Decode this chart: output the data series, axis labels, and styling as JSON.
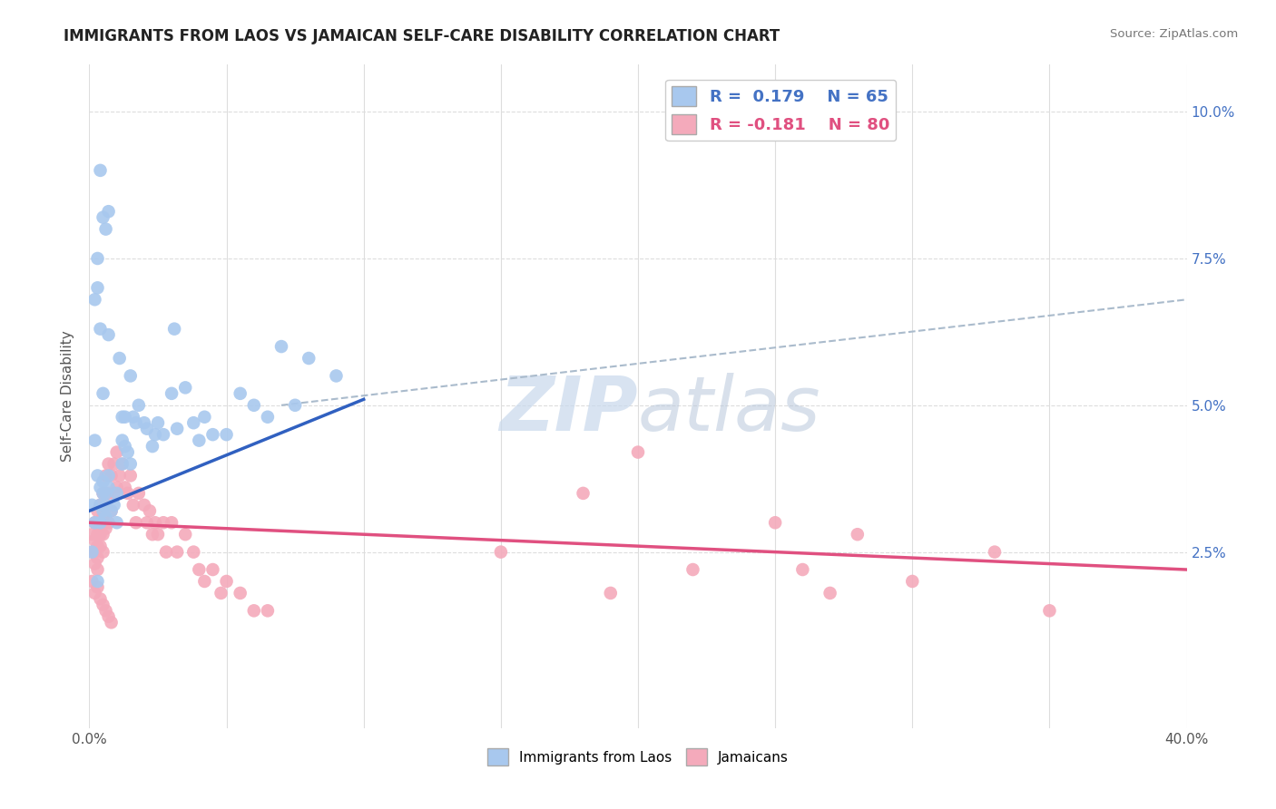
{
  "title": "IMMIGRANTS FROM LAOS VS JAMAICAN SELF-CARE DISABILITY CORRELATION CHART",
  "source": "Source: ZipAtlas.com",
  "ylabel": "Self-Care Disability",
  "xlim": [
    0.0,
    0.4
  ],
  "ylim": [
    -0.005,
    0.108
  ],
  "xticks": [
    0.0,
    0.05,
    0.1,
    0.15,
    0.2,
    0.25,
    0.3,
    0.35,
    0.4
  ],
  "ytick_positions": [
    0.025,
    0.05,
    0.075,
    0.1
  ],
  "ytick_labels": [
    "2.5%",
    "5.0%",
    "7.5%",
    "10.0%"
  ],
  "R_blue": 0.179,
  "N_blue": 65,
  "R_pink": -0.181,
  "N_pink": 80,
  "blue_color": "#A8C8EE",
  "pink_color": "#F4AABB",
  "blue_line_color": "#3060C0",
  "pink_line_color": "#E05080",
  "dash_line_color": "#AABBCC",
  "watermark_color": "#C8D8EC",
  "background_color": "#FFFFFF",
  "grid_color": "#DDDDDD",
  "blue_line_x": [
    0.0,
    0.1
  ],
  "blue_line_y": [
    0.032,
    0.051
  ],
  "pink_line_x": [
    0.0,
    0.4
  ],
  "pink_line_y": [
    0.03,
    0.022
  ],
  "dash_line_x": [
    0.07,
    0.4
  ],
  "dash_line_y": [
    0.05,
    0.068
  ],
  "blue_scatter": [
    [
      0.001,
      0.033
    ],
    [
      0.001,
      0.025
    ],
    [
      0.002,
      0.03
    ],
    [
      0.002,
      0.044
    ],
    [
      0.002,
      0.068
    ],
    [
      0.003,
      0.038
    ],
    [
      0.003,
      0.075
    ],
    [
      0.003,
      0.02
    ],
    [
      0.004,
      0.036
    ],
    [
      0.004,
      0.063
    ],
    [
      0.004,
      0.033
    ],
    [
      0.004,
      0.03
    ],
    [
      0.005,
      0.052
    ],
    [
      0.005,
      0.037
    ],
    [
      0.005,
      0.035
    ],
    [
      0.005,
      0.032
    ],
    [
      0.006,
      0.035
    ],
    [
      0.006,
      0.033
    ],
    [
      0.006,
      0.08
    ],
    [
      0.006,
      0.031
    ],
    [
      0.007,
      0.062
    ],
    [
      0.007,
      0.083
    ],
    [
      0.007,
      0.038
    ],
    [
      0.007,
      0.036
    ],
    [
      0.008,
      0.032
    ],
    [
      0.009,
      0.033
    ],
    [
      0.01,
      0.035
    ],
    [
      0.01,
      0.03
    ],
    [
      0.011,
      0.058
    ],
    [
      0.012,
      0.048
    ],
    [
      0.012,
      0.044
    ],
    [
      0.012,
      0.04
    ],
    [
      0.013,
      0.048
    ],
    [
      0.013,
      0.043
    ],
    [
      0.014,
      0.042
    ],
    [
      0.015,
      0.055
    ],
    [
      0.015,
      0.04
    ],
    [
      0.016,
      0.048
    ],
    [
      0.017,
      0.047
    ],
    [
      0.018,
      0.05
    ],
    [
      0.02,
      0.047
    ],
    [
      0.021,
      0.046
    ],
    [
      0.023,
      0.043
    ],
    [
      0.024,
      0.045
    ],
    [
      0.025,
      0.047
    ],
    [
      0.027,
      0.045
    ],
    [
      0.03,
      0.052
    ],
    [
      0.031,
      0.063
    ],
    [
      0.032,
      0.046
    ],
    [
      0.035,
      0.053
    ],
    [
      0.038,
      0.047
    ],
    [
      0.04,
      0.044
    ],
    [
      0.042,
      0.048
    ],
    [
      0.045,
      0.045
    ],
    [
      0.05,
      0.045
    ],
    [
      0.055,
      0.052
    ],
    [
      0.06,
      0.05
    ],
    [
      0.065,
      0.048
    ],
    [
      0.07,
      0.06
    ],
    [
      0.075,
      0.05
    ],
    [
      0.08,
      0.058
    ],
    [
      0.09,
      0.055
    ],
    [
      0.003,
      0.07
    ],
    [
      0.005,
      0.082
    ],
    [
      0.004,
      0.09
    ]
  ],
  "pink_scatter": [
    [
      0.001,
      0.025
    ],
    [
      0.001,
      0.028
    ],
    [
      0.001,
      0.02
    ],
    [
      0.002,
      0.03
    ],
    [
      0.002,
      0.027
    ],
    [
      0.002,
      0.025
    ],
    [
      0.002,
      0.023
    ],
    [
      0.002,
      0.018
    ],
    [
      0.003,
      0.032
    ],
    [
      0.003,
      0.03
    ],
    [
      0.003,
      0.028
    ],
    [
      0.003,
      0.026
    ],
    [
      0.003,
      0.024
    ],
    [
      0.003,
      0.022
    ],
    [
      0.003,
      0.019
    ],
    [
      0.004,
      0.033
    ],
    [
      0.004,
      0.03
    ],
    [
      0.004,
      0.028
    ],
    [
      0.004,
      0.026
    ],
    [
      0.004,
      0.017
    ],
    [
      0.005,
      0.035
    ],
    [
      0.005,
      0.031
    ],
    [
      0.005,
      0.028
    ],
    [
      0.005,
      0.025
    ],
    [
      0.005,
      0.016
    ],
    [
      0.006,
      0.038
    ],
    [
      0.006,
      0.033
    ],
    [
      0.006,
      0.029
    ],
    [
      0.006,
      0.015
    ],
    [
      0.007,
      0.04
    ],
    [
      0.007,
      0.035
    ],
    [
      0.007,
      0.03
    ],
    [
      0.007,
      0.014
    ],
    [
      0.008,
      0.038
    ],
    [
      0.008,
      0.032
    ],
    [
      0.008,
      0.013
    ],
    [
      0.009,
      0.04
    ],
    [
      0.009,
      0.035
    ],
    [
      0.01,
      0.042
    ],
    [
      0.01,
      0.036
    ],
    [
      0.011,
      0.038
    ],
    [
      0.012,
      0.04
    ],
    [
      0.013,
      0.036
    ],
    [
      0.014,
      0.035
    ],
    [
      0.015,
      0.038
    ],
    [
      0.016,
      0.033
    ],
    [
      0.017,
      0.03
    ],
    [
      0.018,
      0.035
    ],
    [
      0.02,
      0.033
    ],
    [
      0.021,
      0.03
    ],
    [
      0.022,
      0.032
    ],
    [
      0.023,
      0.028
    ],
    [
      0.024,
      0.03
    ],
    [
      0.025,
      0.028
    ],
    [
      0.027,
      0.03
    ],
    [
      0.028,
      0.025
    ],
    [
      0.03,
      0.03
    ],
    [
      0.032,
      0.025
    ],
    [
      0.035,
      0.028
    ],
    [
      0.038,
      0.025
    ],
    [
      0.04,
      0.022
    ],
    [
      0.042,
      0.02
    ],
    [
      0.045,
      0.022
    ],
    [
      0.048,
      0.018
    ],
    [
      0.05,
      0.02
    ],
    [
      0.055,
      0.018
    ],
    [
      0.06,
      0.015
    ],
    [
      0.065,
      0.015
    ],
    [
      0.15,
      0.025
    ],
    [
      0.18,
      0.035
    ],
    [
      0.19,
      0.018
    ],
    [
      0.2,
      0.042
    ],
    [
      0.22,
      0.022
    ],
    [
      0.25,
      0.03
    ],
    [
      0.26,
      0.022
    ],
    [
      0.27,
      0.018
    ],
    [
      0.28,
      0.028
    ],
    [
      0.3,
      0.02
    ],
    [
      0.33,
      0.025
    ],
    [
      0.35,
      0.015
    ]
  ]
}
